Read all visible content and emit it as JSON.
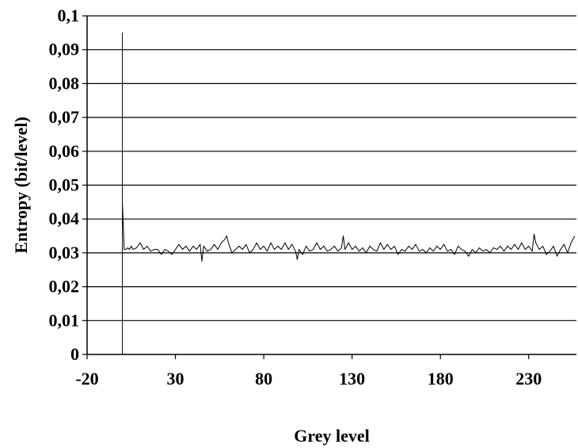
{
  "chart_data": {
    "type": "line",
    "title": "",
    "xlabel": "Grey level",
    "ylabel": "Entropy (bit/level)",
    "xlim": [
      -20,
      257
    ],
    "ylim": [
      0,
      0.1
    ],
    "xticks": [
      -20,
      30,
      80,
      130,
      180,
      230
    ],
    "xtick_labels": [
      "-20",
      "30",
      "80",
      "130",
      "180",
      "230"
    ],
    "yticks": [
      0,
      0.01,
      0.02,
      0.03,
      0.04,
      0.05,
      0.06,
      0.07,
      0.08,
      0.09,
      0.1
    ],
    "ytick_labels": [
      "0",
      "0,01",
      "0,02",
      "0,03",
      "0,04",
      "0,05",
      "0,06",
      "0,07",
      "0,08",
      "0,09",
      "0,1"
    ],
    "grid": "horizontal",
    "line_color": "#000000",
    "series": [
      {
        "x": [
          0,
          0,
          0,
          0,
          0,
          1,
          2,
          3,
          4,
          5,
          6,
          8,
          10,
          12,
          14,
          16,
          18,
          20,
          22,
          24,
          26,
          28,
          30,
          32,
          34,
          36,
          38,
          40,
          42,
          44,
          45,
          46,
          48,
          50,
          52,
          54,
          56,
          58,
          59,
          60,
          62,
          64,
          66,
          68,
          70,
          72,
          74,
          76,
          78,
          80,
          82,
          84,
          86,
          88,
          90,
          92,
          94,
          96,
          98,
          99,
          100,
          102,
          104,
          106,
          108,
          110,
          112,
          114,
          116,
          118,
          120,
          122,
          124,
          125,
          126,
          128,
          130,
          132,
          134,
          136,
          138,
          140,
          142,
          144,
          146,
          148,
          150,
          152,
          154,
          156,
          158,
          160,
          162,
          164,
          166,
          168,
          170,
          172,
          174,
          176,
          178,
          180,
          182,
          184,
          186,
          188,
          190,
          192,
          194,
          196,
          198,
          200,
          202,
          204,
          206,
          208,
          210,
          212,
          214,
          216,
          218,
          220,
          222,
          224,
          226,
          228,
          230,
          232,
          233,
          234,
          236,
          238,
          240,
          242,
          244,
          246,
          248,
          250,
          252,
          254,
          256
        ],
        "y": [
          0.0,
          0.095,
          0.05,
          0.045,
          0.045,
          0.031,
          0.031,
          0.0315,
          0.031,
          0.032,
          0.031,
          0.0315,
          0.033,
          0.031,
          0.032,
          0.0305,
          0.031,
          0.031,
          0.0295,
          0.031,
          0.0305,
          0.0295,
          0.031,
          0.0325,
          0.031,
          0.032,
          0.0305,
          0.032,
          0.031,
          0.0325,
          0.0275,
          0.032,
          0.0305,
          0.031,
          0.0325,
          0.031,
          0.033,
          0.034,
          0.035,
          0.033,
          0.03,
          0.031,
          0.032,
          0.031,
          0.0325,
          0.03,
          0.031,
          0.033,
          0.031,
          0.032,
          0.0305,
          0.033,
          0.031,
          0.032,
          0.031,
          0.033,
          0.031,
          0.0325,
          0.0305,
          0.028,
          0.031,
          0.0295,
          0.032,
          0.0305,
          0.031,
          0.033,
          0.031,
          0.032,
          0.0305,
          0.031,
          0.032,
          0.0305,
          0.0315,
          0.035,
          0.031,
          0.033,
          0.031,
          0.032,
          0.0305,
          0.0315,
          0.03,
          0.032,
          0.031,
          0.0305,
          0.033,
          0.031,
          0.0325,
          0.031,
          0.032,
          0.0295,
          0.031,
          0.0305,
          0.032,
          0.031,
          0.0325,
          0.0305,
          0.031,
          0.03,
          0.0315,
          0.0305,
          0.032,
          0.031,
          0.0325,
          0.0305,
          0.031,
          0.0295,
          0.032,
          0.031,
          0.0305,
          0.029,
          0.031,
          0.03,
          0.0315,
          0.0305,
          0.031,
          0.03,
          0.0315,
          0.031,
          0.032,
          0.0305,
          0.032,
          0.031,
          0.0325,
          0.031,
          0.033,
          0.031,
          0.032,
          0.0305,
          0.0355,
          0.033,
          0.031,
          0.032,
          0.0295,
          0.0305,
          0.032,
          0.029,
          0.031,
          0.0325,
          0.03,
          0.033,
          0.035
        ]
      }
    ]
  }
}
